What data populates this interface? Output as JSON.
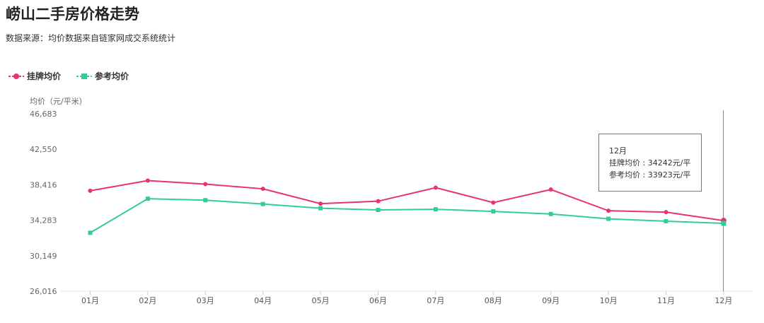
{
  "title": "崂山二手房价格走势",
  "subtitle": "数据来源：均价数据来自链家网成交系统统计",
  "legend": [
    {
      "label": "挂牌均价",
      "color": "#e8336d",
      "marker": "circle"
    },
    {
      "label": "参考均价",
      "color": "#33cc99",
      "marker": "square"
    }
  ],
  "tooltip": {
    "month": "12月",
    "line1": "挂牌均价 : 34242元/平",
    "line2": "参考均价 : 33923元/平"
  },
  "chart_data": {
    "type": "line",
    "ylabel": "均价（元/平米）",
    "categories": [
      "01月",
      "02月",
      "03月",
      "04月",
      "05月",
      "06月",
      "07月",
      "08月",
      "09月",
      "10月",
      "11月",
      "12月"
    ],
    "yticks": [
      "26,016",
      "30,149",
      "34,283",
      "38,416",
      "42,550",
      "46,683"
    ],
    "ylim": [
      26016,
      46683
    ],
    "series": [
      {
        "name": "挂牌均价",
        "color": "#e8336d",
        "marker": "circle",
        "values": [
          37720,
          38900,
          38490,
          37940,
          36220,
          36500,
          38080,
          36340,
          37860,
          35390,
          35230,
          34242
        ]
      },
      {
        "name": "参考均价",
        "color": "#33cc99",
        "marker": "square",
        "values": [
          32820,
          36790,
          36620,
          36170,
          35680,
          35480,
          35560,
          35310,
          35010,
          34450,
          34170,
          33923
        ]
      }
    ],
    "grid": false,
    "legend_position": "top-left",
    "highlight_category": "12月"
  }
}
